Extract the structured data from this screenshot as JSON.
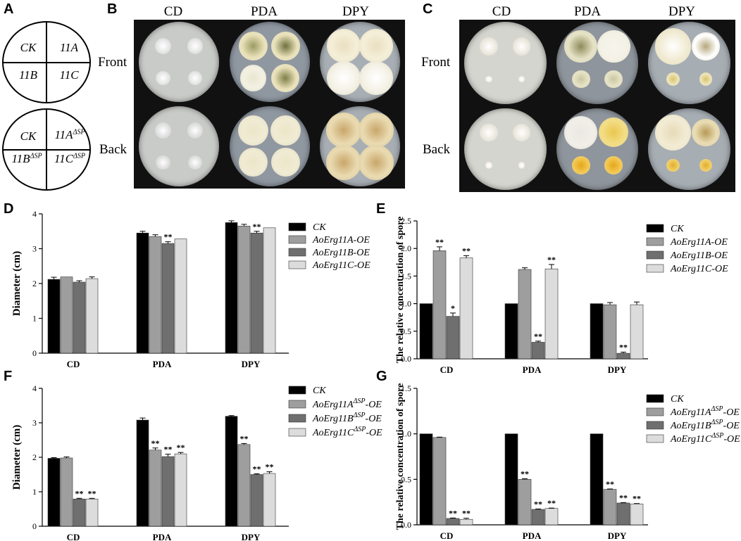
{
  "panels": {
    "A": {
      "letter": "A",
      "top_labels": [
        "CK",
        "11A",
        "11B",
        "11C"
      ],
      "bottom_labels": [
        "CK",
        "11A",
        "ΔSP",
        "11B",
        "ΔSP",
        "11C",
        "ΔSP"
      ]
    },
    "B": {
      "letter": "B",
      "columns": [
        "CD",
        "PDA",
        "DPY"
      ],
      "rows": [
        "Front",
        "Back"
      ]
    },
    "C": {
      "letter": "C",
      "columns": [
        "CD",
        "PDA",
        "DPY"
      ],
      "rows": [
        "Front",
        "Back"
      ]
    },
    "D": {
      "letter": "D"
    },
    "E": {
      "letter": "E"
    },
    "F": {
      "letter": "F"
    },
    "G": {
      "letter": "G"
    }
  },
  "chart_data": [
    {
      "id": "D",
      "type": "bar",
      "ylabel": "Diameter (cm)",
      "xlabel": "",
      "ylim": [
        0,
        4
      ],
      "yticks": [
        0,
        1,
        2,
        3,
        4
      ],
      "categories": [
        "CD",
        "PDA",
        "DPY"
      ],
      "legend_position": "top-right",
      "series": [
        {
          "name": "CK",
          "color": "#000000",
          "values": [
            2.12,
            3.45,
            3.75
          ],
          "errors": [
            0.06,
            0.05,
            0.05
          ],
          "marks": [
            "",
            "",
            ""
          ]
        },
        {
          "name": "AoErg11A-OE",
          "color": "#9e9e9e",
          "values": [
            2.19,
            3.35,
            3.65
          ],
          "errors": [
            0.0,
            0.05,
            0.05
          ],
          "marks": [
            "",
            "",
            ""
          ]
        },
        {
          "name": "AoErg11B-OE",
          "color": "#6f6f6f",
          "values": [
            2.04,
            3.15,
            3.45
          ],
          "errors": [
            0.04,
            0.05,
            0.05
          ],
          "marks": [
            "",
            "**",
            "**"
          ]
        },
        {
          "name": "AoErg11C-OE",
          "color": "#dcdcdc",
          "values": [
            2.14,
            3.28,
            3.6
          ],
          "errors": [
            0.05,
            0.0,
            0.0
          ],
          "marks": [
            "",
            "",
            ""
          ]
        }
      ]
    },
    {
      "id": "E",
      "type": "bar",
      "ylabel": "The relative concentration of spore",
      "xlabel": "",
      "ylim": [
        0,
        2.5
      ],
      "yticks": [
        "0.0",
        "0.5",
        "1.0",
        "1.5",
        "2.0",
        "2.5"
      ],
      "categories": [
        "CD",
        "PDA",
        "DPY"
      ],
      "legend_position": "top-right",
      "series": [
        {
          "name": "CK",
          "color": "#000000",
          "values": [
            1.0,
            1.0,
            1.0
          ],
          "errors": [
            0,
            0,
            0
          ],
          "marks": [
            "",
            "",
            ""
          ]
        },
        {
          "name": "AoErg11A-OE",
          "color": "#9e9e9e",
          "values": [
            1.96,
            1.62,
            0.98
          ],
          "errors": [
            0.07,
            0.03,
            0.04
          ],
          "marks": [
            "**",
            "",
            ""
          ]
        },
        {
          "name": "AoErg11B-OE",
          "color": "#6f6f6f",
          "values": [
            0.77,
            0.3,
            0.1
          ],
          "errors": [
            0.06,
            0.02,
            0.02
          ],
          "marks": [
            "*",
            "**",
            "**"
          ]
        },
        {
          "name": "AoErg11C-OE",
          "color": "#dcdcdc",
          "values": [
            1.83,
            1.63,
            0.98
          ],
          "errors": [
            0.04,
            0.08,
            0.05
          ],
          "marks": [
            "**",
            "**",
            ""
          ]
        }
      ]
    },
    {
      "id": "F",
      "type": "bar",
      "ylabel": "Diameter (cm)",
      "xlabel": "",
      "ylim": [
        0,
        4
      ],
      "yticks": [
        0,
        1,
        2,
        3,
        4
      ],
      "categories": [
        "CD",
        "PDA",
        "DPY"
      ],
      "legend_position": "top-right",
      "series": [
        {
          "name": "CK",
          "color": "#000000",
          "values": [
            1.97,
            3.08,
            3.19
          ],
          "errors": [
            0.02,
            0.06,
            0.02
          ],
          "marks": [
            "",
            "",
            ""
          ]
        },
        {
          "name": "AoErg11AΔSP-OE",
          "label_main": "AoErg11A",
          "label_sup": "ΔSP",
          "label_suffix": "-OE",
          "color": "#9e9e9e",
          "values": [
            1.98,
            2.21,
            2.37
          ],
          "errors": [
            0.03,
            0.06,
            0.03
          ],
          "marks": [
            "",
            "**",
            "**"
          ]
        },
        {
          "name": "AoErg11BΔSP-OE",
          "label_main": "AoErg11B",
          "label_sup": "ΔSP",
          "label_suffix": "-OE",
          "color": "#6f6f6f",
          "values": [
            0.79,
            2.02,
            1.5
          ],
          "errors": [
            0.02,
            0.07,
            0.02
          ],
          "marks": [
            "**",
            "**",
            "**"
          ]
        },
        {
          "name": "AoErg11CΔSP-OE",
          "label_main": "AoErg11C",
          "label_sup": "ΔSP",
          "label_suffix": "-OE",
          "color": "#dcdcdc",
          "values": [
            0.79,
            2.1,
            1.53
          ],
          "errors": [
            0.02,
            0.04,
            0.05
          ],
          "marks": [
            "**",
            "**",
            "**"
          ]
        }
      ]
    },
    {
      "id": "G",
      "type": "bar",
      "ylabel": "The relative concentration of spore",
      "xlabel": "",
      "ylim": [
        0,
        1.5
      ],
      "yticks": [
        "0.0",
        "0.5",
        "1.0",
        "1.5"
      ],
      "categories": [
        "CD",
        "PDA",
        "DPY"
      ],
      "legend_position": "top-right",
      "series": [
        {
          "name": "CK",
          "color": "#000000",
          "values": [
            1.0,
            1.0,
            1.0
          ],
          "errors": [
            0,
            0,
            0
          ],
          "marks": [
            "",
            "",
            ""
          ]
        },
        {
          "name": "AoErg11AΔSP-OE",
          "label_main": "AoErg11A",
          "label_sup": "ΔSP",
          "label_suffix": "-OE",
          "color": "#9e9e9e",
          "values": [
            0.96,
            0.5,
            0.39
          ],
          "errors": [
            0.004,
            0.006,
            0.004
          ],
          "marks": [
            "",
            "**",
            "**"
          ]
        },
        {
          "name": "AoErg11BΔSP-OE",
          "label_main": "AoErg11B",
          "label_sup": "ΔSP",
          "label_suffix": "-OE",
          "color": "#6f6f6f",
          "values": [
            0.07,
            0.17,
            0.24
          ],
          "errors": [
            0.005,
            0.004,
            0.004
          ],
          "marks": [
            "**",
            "**",
            "**"
          ]
        },
        {
          "name": "AoErg11CΔSP-OE",
          "label_main": "AoErg11C",
          "label_sup": "ΔSP",
          "label_suffix": "-OE",
          "color": "#dcdcdc",
          "values": [
            0.06,
            0.18,
            0.23
          ],
          "errors": [
            0.012,
            0.004,
            0.004
          ],
          "marks": [
            "**",
            "**",
            "**"
          ]
        }
      ]
    }
  ]
}
